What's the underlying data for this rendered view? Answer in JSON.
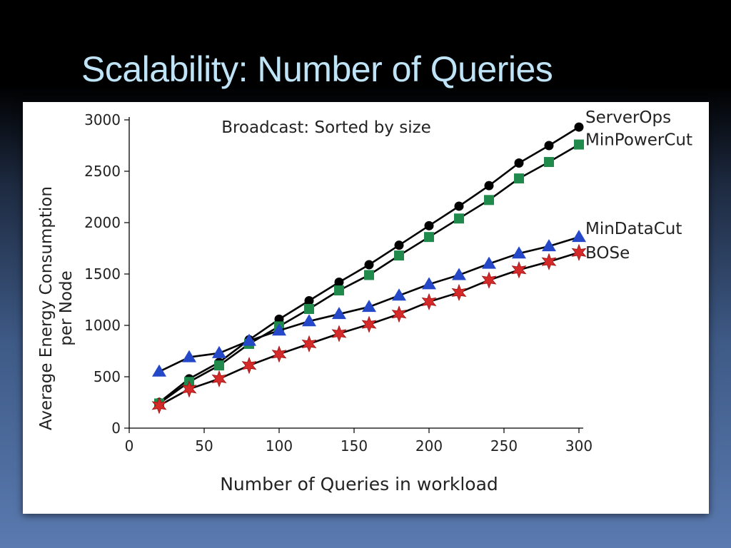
{
  "slide": {
    "title": "Scalability: Number of Queries"
  },
  "chart_data": {
    "type": "line",
    "title": "Broadcast: Sorted by size",
    "xlabel": "Number of Queries in workload",
    "ylabel_line1": "Average Energy Consumption",
    "ylabel_line2": "per Node",
    "xlim": [
      0,
      300
    ],
    "ylim": [
      0,
      3000
    ],
    "xticks": [
      0,
      50,
      100,
      150,
      200,
      250,
      300
    ],
    "yticks": [
      0,
      500,
      1000,
      1500,
      2000,
      2500,
      3000
    ],
    "x": [
      20,
      40,
      60,
      80,
      100,
      120,
      140,
      160,
      180,
      200,
      220,
      240,
      260,
      280,
      300
    ],
    "series": [
      {
        "name": "ServerOps",
        "marker": "circle",
        "color": "#000000",
        "values": [
          250,
          480,
          640,
          860,
          1060,
          1240,
          1420,
          1590,
          1780,
          1970,
          2160,
          2360,
          2580,
          2750,
          2930
        ]
      },
      {
        "name": "MinPowerCut",
        "marker": "square",
        "color": "#1f8a4c",
        "values": [
          240,
          450,
          610,
          820,
          990,
          1160,
          1340,
          1490,
          1680,
          1860,
          2040,
          2220,
          2430,
          2590,
          2760
        ]
      },
      {
        "name": "MinDataCut",
        "marker": "triangle",
        "color": "#2448c8",
        "values": [
          550,
          690,
          730,
          850,
          950,
          1040,
          1110,
          1180,
          1290,
          1400,
          1490,
          1600,
          1700,
          1770,
          1860
        ]
      },
      {
        "name": "BOSe",
        "marker": "star",
        "color": "#d42a2a",
        "values": [
          220,
          380,
          480,
          610,
          720,
          820,
          920,
          1010,
          1110,
          1230,
          1320,
          1440,
          1540,
          1620,
          1710
        ]
      }
    ],
    "legend_placement": "right-end-of-lines",
    "grid": false
  }
}
